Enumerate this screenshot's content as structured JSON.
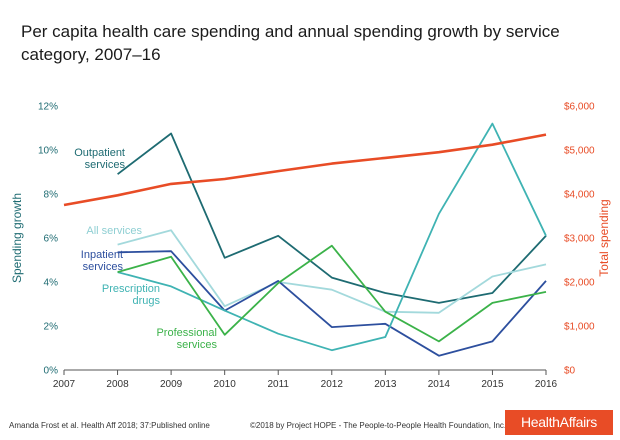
{
  "page": {
    "title": "Per capita health care spending and annual spending growth by service category, 2007–16",
    "footer_left": "Amanda Frost et al. Health Aff 2018; 37:Published online",
    "footer_center": "©2018 by Project HOPE - The People-to-People Health Foundation, Inc.",
    "logo": "HealthAffairs"
  },
  "chart_data": {
    "type": "line",
    "title": "Per capita health care spending and annual spending growth by service category, 2007–16",
    "x": [
      2007,
      2008,
      2009,
      2010,
      2011,
      2012,
      2013,
      2014,
      2015,
      2016
    ],
    "ylabel": "Spending growth",
    "y2label": "Total spending",
    "ylim": [
      0,
      12
    ],
    "yticks": [
      "0%",
      "2%",
      "4%",
      "6%",
      "8%",
      "10%",
      "12%"
    ],
    "y2lim": [
      0,
      6000
    ],
    "y2ticks": [
      "$0",
      "$1,000",
      "$2,000",
      "$3,000",
      "$4,000",
      "$5,000",
      "$6,000"
    ],
    "grid": false,
    "series": [
      {
        "name": "Outpatient services",
        "axis": "left",
        "color": "#1e6b72",
        "x": [
          2008,
          2009,
          2010,
          2011,
          2012,
          2013,
          2014,
          2015,
          2016
        ],
        "values": [
          8.9,
          10.75,
          5.1,
          6.1,
          4.2,
          3.5,
          3.05,
          3.5,
          6.1
        ]
      },
      {
        "name": "All services",
        "axis": "left",
        "color": "#a3d9dc",
        "x": [
          2008,
          2009,
          2010,
          2011,
          2012,
          2013,
          2014,
          2015,
          2016
        ],
        "values": [
          5.7,
          6.35,
          2.9,
          4.0,
          3.65,
          2.65,
          2.6,
          4.25,
          4.8
        ]
      },
      {
        "name": "Inpatient services",
        "axis": "left",
        "color": "#2d4f9e",
        "x": [
          2008,
          2009,
          2010,
          2011,
          2012,
          2013,
          2014,
          2015,
          2016
        ],
        "values": [
          5.35,
          5.4,
          2.7,
          4.05,
          1.95,
          2.1,
          0.65,
          1.3,
          4.05
        ]
      },
      {
        "name": "Prescription drugs",
        "axis": "left",
        "color": "#3fb3b3",
        "x": [
          2008,
          2009,
          2010,
          2011,
          2012,
          2013,
          2014,
          2015,
          2016
        ],
        "values": [
          4.45,
          3.8,
          2.7,
          1.65,
          0.9,
          1.5,
          7.1,
          11.2,
          6.1
        ]
      },
      {
        "name": "Professional services",
        "axis": "left",
        "color": "#3bb249",
        "x": [
          2008,
          2009,
          2010,
          2011,
          2012,
          2013,
          2014,
          2015,
          2016
        ],
        "values": [
          4.45,
          5.15,
          1.6,
          3.95,
          5.65,
          2.65,
          1.3,
          3.05,
          3.55
        ]
      },
      {
        "name": "Total spending",
        "axis": "right",
        "color": "#e84c26",
        "x": [
          2007,
          2008,
          2009,
          2010,
          2011,
          2012,
          2013,
          2014,
          2015,
          2016
        ],
        "values": [
          3750,
          3970,
          4230,
          4340,
          4520,
          4690,
          4820,
          4950,
          5120,
          5350
        ]
      }
    ],
    "annotations": [
      {
        "series": "Outpatient services",
        "lines": [
          "Outpatient",
          "services"
        ]
      },
      {
        "series": "All services",
        "lines": [
          "All services"
        ]
      },
      {
        "series": "Inpatient services",
        "lines": [
          "Inpatient",
          "services"
        ]
      },
      {
        "series": "Prescription drugs",
        "lines": [
          "Prescription",
          "drugs"
        ]
      },
      {
        "series": "Professional services",
        "lines": [
          "Professional",
          "services"
        ]
      }
    ]
  }
}
